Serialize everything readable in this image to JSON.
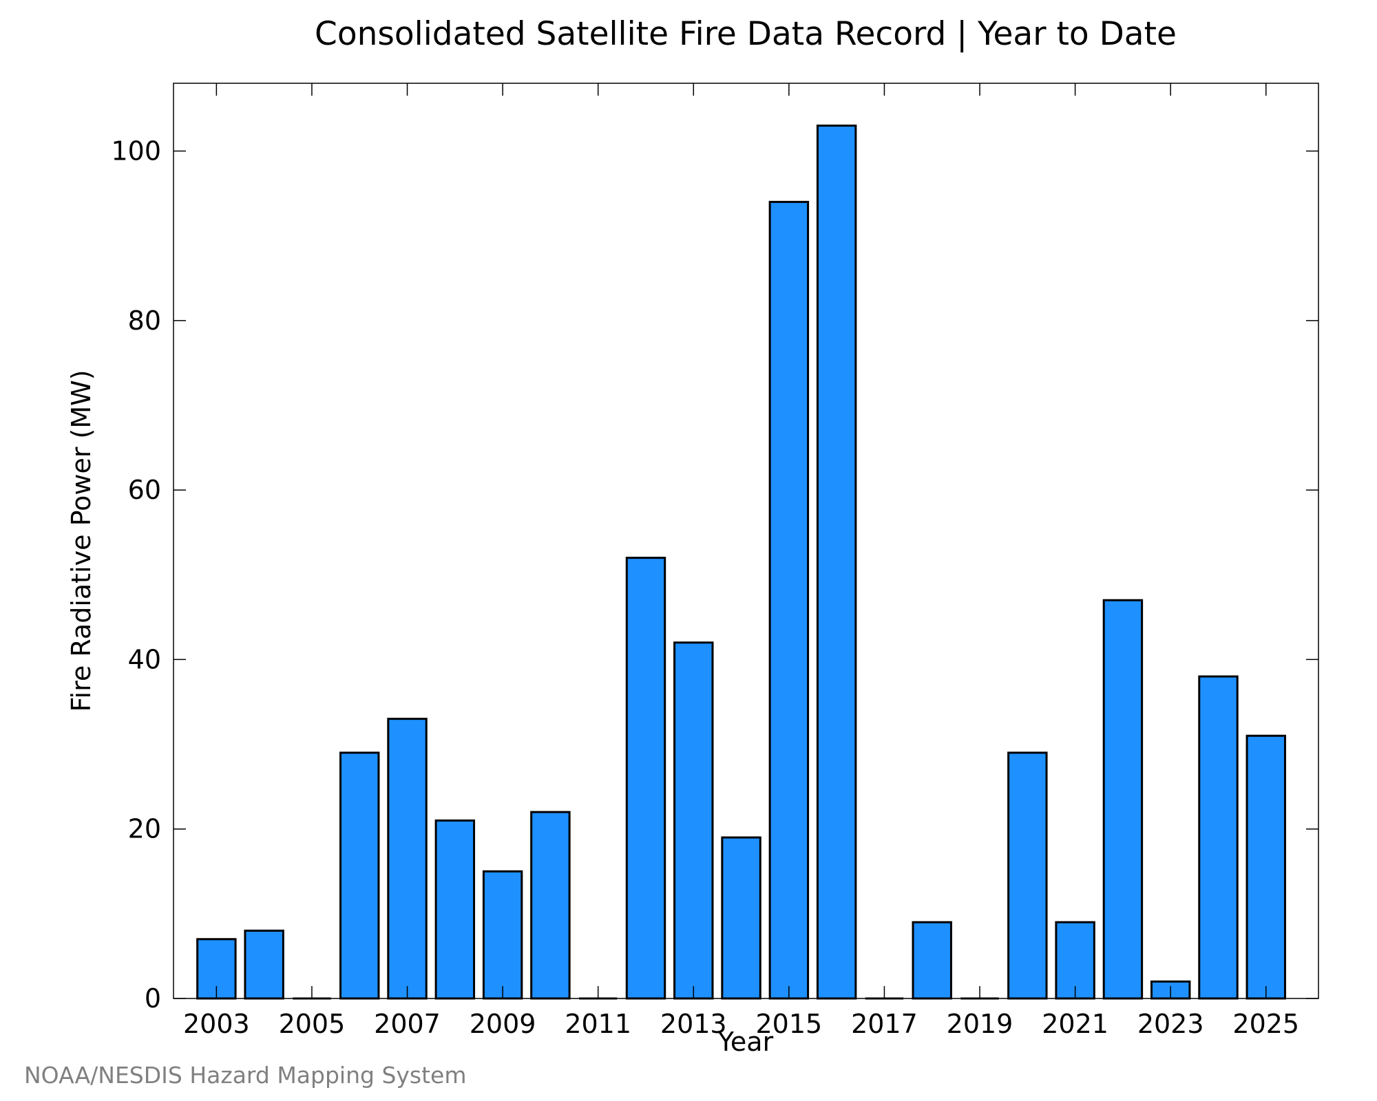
{
  "chart_data": {
    "type": "bar",
    "title": "Consolidated Satellite Fire Data Record | Year to Date",
    "xlabel": "Year",
    "ylabel": "Fire Radiative Power (MW)",
    "categories": [
      2003,
      2004,
      2005,
      2006,
      2007,
      2008,
      2009,
      2010,
      2011,
      2012,
      2013,
      2014,
      2015,
      2016,
      2017,
      2018,
      2019,
      2020,
      2021,
      2022,
      2023,
      2024,
      2025
    ],
    "values": [
      7,
      8,
      0,
      29,
      33,
      21,
      15,
      22,
      0,
      52,
      42,
      19,
      94,
      103,
      0,
      9,
      0,
      29,
      9,
      47,
      2,
      38,
      31
    ],
    "x_ticks": [
      2003,
      2005,
      2007,
      2009,
      2011,
      2013,
      2015,
      2017,
      2019,
      2021,
      2023,
      2025
    ],
    "y_ticks": [
      0,
      20,
      40,
      60,
      80,
      100
    ],
    "xlim": [
      2002.1,
      2026.1
    ],
    "ylim": [
      0,
      108
    ],
    "bar_color": "#1e90ff",
    "edge_color": "#000000",
    "grid": false
  },
  "credit": "NOAA/NESDIS Hazard Mapping System"
}
